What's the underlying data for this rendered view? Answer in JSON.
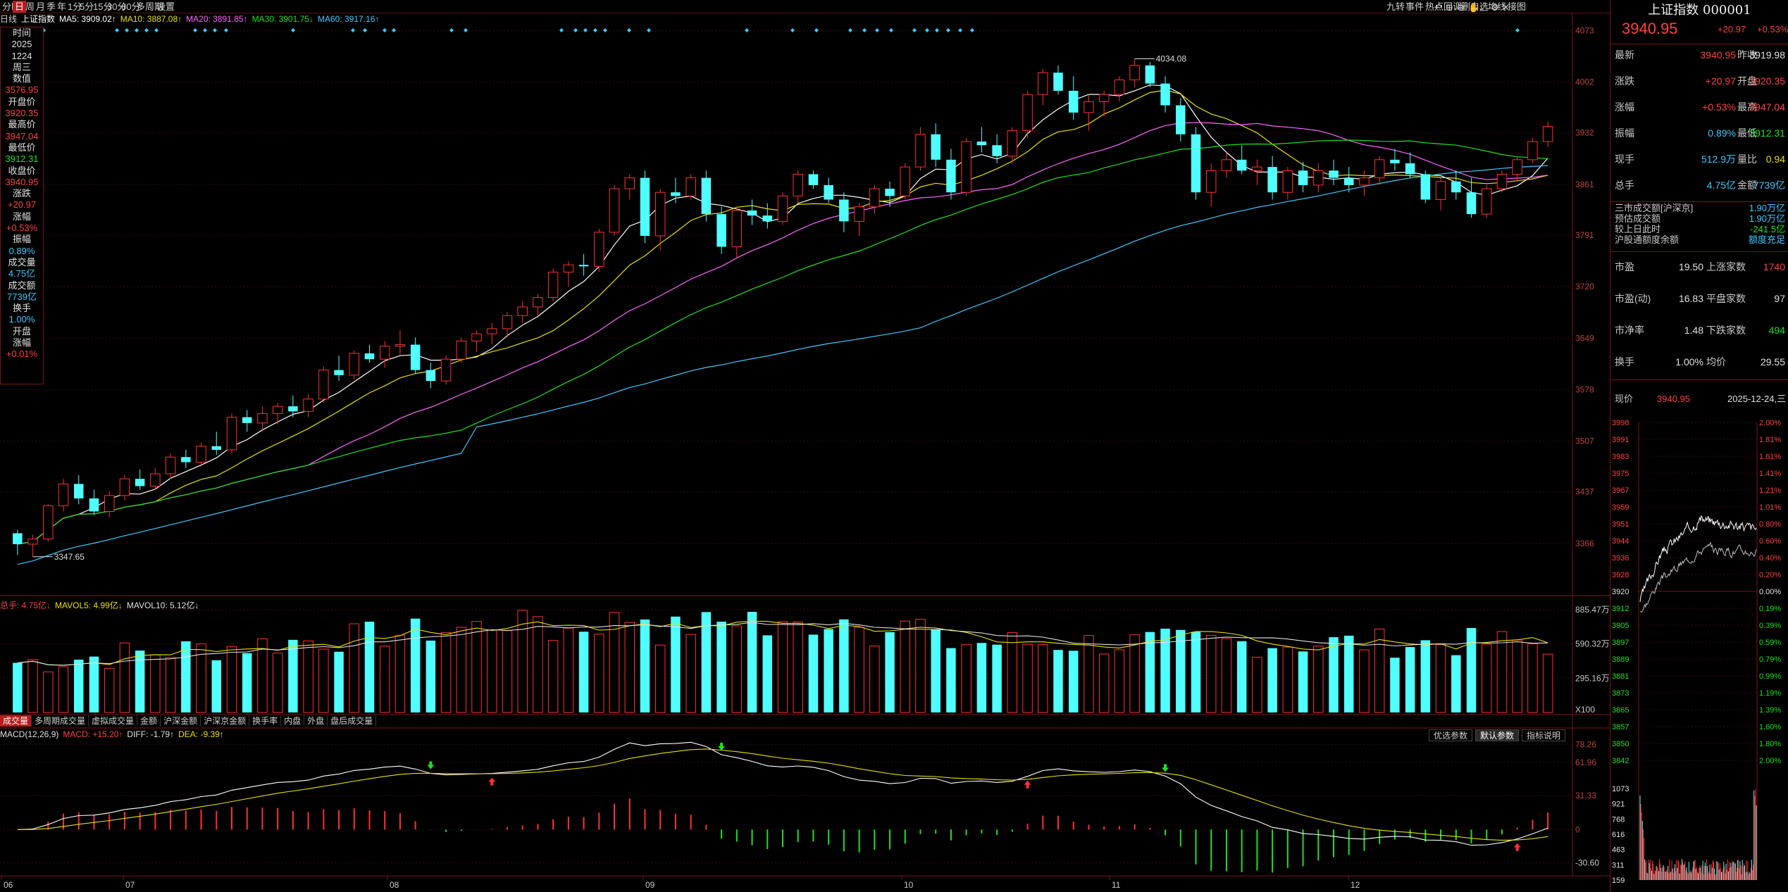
{
  "toolbar": {
    "left": [
      "分时",
      "日",
      "周",
      "月",
      "季",
      "年",
      "1分",
      "5分",
      "15分",
      "30分",
      "60分",
      "多周期",
      "设置"
    ],
    "active_index": 1,
    "right_items": [
      "九转",
      "事件",
      "热点回调",
      "删自选",
      "均线",
      "接图"
    ],
    "icons": [
      "undo-icon",
      "zoom-in-icon",
      "zoom-out-icon",
      "hand-icon",
      "download-icon",
      "settings-icon",
      "close-icon"
    ]
  },
  "ma_legend": [
    {
      "label": "日线",
      "color": "#d0d0d0"
    },
    {
      "label": "上证指数",
      "color": "#ffffff"
    },
    {
      "label": "MA5: 3909.02↑",
      "color": "#ffffff"
    },
    {
      "label": "MA10: 3887.08↑",
      "color": "#e8e000"
    },
    {
      "label": "MA20: 3891.85↑",
      "color": "#ff66ff"
    },
    {
      "label": "MA30: 3901.75↓",
      "color": "#20e020"
    },
    {
      "label": "MA60: 3917.16↑",
      "color": "#3ec8ff"
    }
  ],
  "left_info": [
    {
      "t": "时间",
      "c": "w"
    },
    {
      "t": "2025",
      "c": "w"
    },
    {
      "t": "1224",
      "c": "w"
    },
    {
      "t": "周三",
      "c": "w"
    },
    {
      "t": "数值",
      "c": "w"
    },
    {
      "t": "3576.95",
      "c": "r"
    },
    {
      "t": "开盘价",
      "c": "w"
    },
    {
      "t": "3920.35",
      "c": "r"
    },
    {
      "t": "最高价",
      "c": "w"
    },
    {
      "t": "3947.04",
      "c": "r"
    },
    {
      "t": "最低价",
      "c": "w"
    },
    {
      "t": "3912.31",
      "c": "g"
    },
    {
      "t": "收盘价",
      "c": "w"
    },
    {
      "t": "3940.95",
      "c": "r"
    },
    {
      "t": "涨跌",
      "c": "w"
    },
    {
      "t": "+20.97",
      "c": "r"
    },
    {
      "t": "涨幅",
      "c": "w"
    },
    {
      "t": "+0.53%",
      "c": "r"
    },
    {
      "t": "振幅",
      "c": "w"
    },
    {
      "t": "0.89%",
      "c": "c"
    },
    {
      "t": "成交量",
      "c": "w"
    },
    {
      "t": "4.75亿",
      "c": "c"
    },
    {
      "t": "成交额",
      "c": "w"
    },
    {
      "t": "7739亿",
      "c": "c"
    },
    {
      "t": "换手",
      "c": "w"
    },
    {
      "t": "1.00%",
      "c": "c"
    },
    {
      "t": "开盘",
      "c": "w"
    },
    {
      "t": "涨幅",
      "c": "w"
    },
    {
      "t": "+0.01%",
      "c": "r"
    }
  ],
  "price_axis": [
    "4073",
    "4002",
    "3932",
    "3861",
    "3791",
    "3720",
    "3649",
    "3578",
    "3507",
    "3437",
    "3366"
  ],
  "vol_axis": [
    "885.47万",
    "590.32万",
    "295.16万",
    "X100"
  ],
  "macd_axis": [
    "78.26",
    "61.96",
    "31.33",
    "0",
    "-30.60"
  ],
  "month_axis": [
    "06",
    "07",
    "08",
    "09",
    "10",
    "11",
    "12"
  ],
  "annotations": {
    "high": "4034.08",
    "low": "3347.65"
  },
  "vol_legend": [
    {
      "t": "总手: 4.75亿↓",
      "c": "r"
    },
    {
      "t": "MAVOL5: 4.99亿↓",
      "c": "y"
    },
    {
      "t": "MAVOL10: 5.12亿↓",
      "c": "w"
    }
  ],
  "tabs": [
    "成交量",
    "多周期成交量",
    "虚拟成交量",
    "金额",
    "沪深金额",
    "沪深京金额",
    "换手率",
    "内盘",
    "外盘",
    "盘后成交量"
  ],
  "macd_legend": [
    {
      "t": "MACD(12,26,9)",
      "c": "w"
    },
    {
      "t": "MACD: +15.20↑",
      "c": "r"
    },
    {
      "t": "DIFF: -1.79↑",
      "c": "w"
    },
    {
      "t": "DEA: -9.39↑",
      "c": "y"
    }
  ],
  "macd_buttons": [
    "优选参数",
    "默认参数",
    "指标说明"
  ],
  "right": {
    "title": "上证指数 000001",
    "price": "3940.95",
    "change": "+20.97",
    "change_pct": "+0.53%",
    "quote_rows": [
      {
        "l1": "最新",
        "v1": "3940.95",
        "c1": "r",
        "l2": "昨收",
        "v2": "3919.98",
        "c2": "w"
      },
      {
        "l1": "涨跌",
        "v1": "+20.97",
        "c1": "r",
        "l2": "开盘",
        "v2": "3920.35",
        "c2": "r"
      },
      {
        "l1": "涨幅",
        "v1": "+0.53%",
        "c1": "r",
        "l2": "最高",
        "v2": "3947.04",
        "c2": "r"
      },
      {
        "l1": "振幅",
        "v1": "0.89%",
        "c1": "c",
        "l2": "最低",
        "v2": "3912.31",
        "c2": "g"
      },
      {
        "l1": "现手",
        "v1": "512.9万",
        "c1": "c",
        "l2": "量比",
        "v2": "0.94",
        "c2": "y"
      },
      {
        "l1": "总手",
        "v1": "4.75亿",
        "c1": "c",
        "l2": "金额",
        "v2": "7739亿",
        "c2": "c"
      }
    ],
    "market_rows": [
      {
        "l": "三市成交额[沪深京]",
        "v": "1.90万亿",
        "c": "c"
      },
      {
        "l": "预估成交额",
        "v": "1.90万亿",
        "c": "c"
      },
      {
        "l": "较上日此时",
        "v": "-241.5亿",
        "c": "g"
      },
      {
        "l": "沪股通额度余额",
        "v": "额度充足",
        "c": "c"
      }
    ],
    "stat_rows": [
      {
        "l1": "市盈",
        "v1": "19.50",
        "l2": "上涨家数",
        "v2": "1740",
        "c2": "r"
      },
      {
        "l1": "市盈(动)",
        "v1": "16.83",
        "l2": "平盘家数",
        "v2": "97",
        "c2": "w"
      },
      {
        "l1": "市净率",
        "v1": "1.48",
        "l2": "下跌家数",
        "v2": "494",
        "c2": "g"
      },
      {
        "l1": "换手",
        "v1": "1.00%",
        "l2": "均价",
        "v2": "29.55",
        "c2": "w"
      }
    ],
    "mini_header": {
      "label": "现价",
      "price": "3940.95",
      "date": "2025-12-24,三"
    },
    "mini_left_axis": [
      "3998",
      "3991",
      "3983",
      "3975",
      "3967",
      "3959",
      "3951",
      "3944",
      "3936",
      "3928",
      "3920",
      "3912",
      "3905",
      "3897",
      "3889",
      "3881",
      "3873",
      "3865",
      "3857",
      "3850",
      "3842"
    ],
    "mini_right_axis": [
      "2.00%",
      "1.81%",
      "1.61%",
      "1.41%",
      "1.21%",
      "1.01%",
      "0.80%",
      "0.60%",
      "0.40%",
      "0.20%",
      "0.00%",
      "0.19%",
      "0.39%",
      "0.59%",
      "0.79%",
      "0.99%",
      "1.19%",
      "1.39%",
      "1.60%",
      "1.80%",
      "2.00%"
    ],
    "mini_vol_axis": [
      "1073",
      "921",
      "768",
      "616",
      "463",
      "311",
      "159"
    ]
  },
  "chart_data": {
    "type": "candlestick",
    "title": "上证指数 日线",
    "ylim": [
      3295,
      4088
    ],
    "n": 85,
    "candles_ohlc": [
      [
        3380,
        3385,
        3350,
        3365
      ],
      [
        3365,
        3378,
        3347.65,
        3372
      ],
      [
        3372,
        3420,
        3368,
        3418
      ],
      [
        3418,
        3455,
        3410,
        3448
      ],
      [
        3448,
        3460,
        3420,
        3428
      ],
      [
        3428,
        3440,
        3405,
        3410
      ],
      [
        3410,
        3438,
        3402,
        3432
      ],
      [
        3432,
        3460,
        3425,
        3455
      ],
      [
        3455,
        3468,
        3440,
        3445
      ],
      [
        3445,
        3470,
        3440,
        3462
      ],
      [
        3462,
        3490,
        3455,
        3485
      ],
      [
        3485,
        3495,
        3470,
        3478
      ],
      [
        3478,
        3505,
        3472,
        3500
      ],
      [
        3500,
        3520,
        3488,
        3495
      ],
      [
        3495,
        3545,
        3490,
        3540
      ],
      [
        3540,
        3550,
        3520,
        3532
      ],
      [
        3532,
        3555,
        3520,
        3545
      ],
      [
        3545,
        3560,
        3530,
        3555
      ],
      [
        3555,
        3570,
        3540,
        3548
      ],
      [
        3548,
        3572,
        3540,
        3565
      ],
      [
        3565,
        3610,
        3560,
        3605
      ],
      [
        3605,
        3625,
        3590,
        3598
      ],
      [
        3598,
        3632,
        3592,
        3628
      ],
      [
        3628,
        3640,
        3615,
        3620
      ],
      [
        3620,
        3645,
        3608,
        3638
      ],
      [
        3638,
        3660,
        3625,
        3640
      ],
      [
        3640,
        3650,
        3600,
        3605
      ],
      [
        3605,
        3615,
        3580,
        3590
      ],
      [
        3590,
        3625,
        3585,
        3620
      ],
      [
        3620,
        3650,
        3615,
        3645
      ],
      [
        3645,
        3660,
        3630,
        3655
      ],
      [
        3655,
        3670,
        3640,
        3662
      ],
      [
        3662,
        3685,
        3650,
        3680
      ],
      [
        3680,
        3700,
        3670,
        3692
      ],
      [
        3692,
        3710,
        3680,
        3705
      ],
      [
        3705,
        3745,
        3700,
        3740
      ],
      [
        3740,
        3755,
        3720,
        3750
      ],
      [
        3750,
        3765,
        3735,
        3748
      ],
      [
        3748,
        3800,
        3740,
        3795
      ],
      [
        3795,
        3860,
        3790,
        3855
      ],
      [
        3855,
        3875,
        3840,
        3870
      ],
      [
        3870,
        3880,
        3780,
        3790
      ],
      [
        3790,
        3855,
        3770,
        3850
      ],
      [
        3850,
        3870,
        3835,
        3845
      ],
      [
        3845,
        3875,
        3840,
        3870
      ],
      [
        3870,
        3880,
        3810,
        3820
      ],
      [
        3820,
        3830,
        3765,
        3775
      ],
      [
        3775,
        3830,
        3760,
        3825
      ],
      [
        3825,
        3840,
        3805,
        3818
      ],
      [
        3818,
        3835,
        3800,
        3810
      ],
      [
        3810,
        3850,
        3805,
        3845
      ],
      [
        3845,
        3880,
        3835,
        3875
      ],
      [
        3875,
        3880,
        3855,
        3860
      ],
      [
        3860,
        3870,
        3835,
        3840
      ],
      [
        3840,
        3850,
        3795,
        3810
      ],
      [
        3810,
        3835,
        3790,
        3830
      ],
      [
        3830,
        3860,
        3820,
        3855
      ],
      [
        3855,
        3865,
        3830,
        3845
      ],
      [
        3845,
        3890,
        3840,
        3885
      ],
      [
        3885,
        3940,
        3880,
        3930
      ],
      [
        3930,
        3945,
        3885,
        3895
      ],
      [
        3895,
        3910,
        3840,
        3850
      ],
      [
        3850,
        3925,
        3845,
        3920
      ],
      [
        3920,
        3940,
        3905,
        3915
      ],
      [
        3915,
        3930,
        3890,
        3900
      ],
      [
        3900,
        3940,
        3890,
        3935
      ],
      [
        3935,
        3990,
        3925,
        3985
      ],
      [
        3985,
        4020,
        3970,
        4015
      ],
      [
        4015,
        4025,
        3985,
        3990
      ],
      [
        3990,
        4010,
        3950,
        3960
      ],
      [
        3960,
        3985,
        3935,
        3975
      ],
      [
        3975,
        3990,
        3955,
        3985
      ],
      [
        3985,
        4010,
        3975,
        4005
      ],
      [
        4005,
        4034.08,
        3995,
        4025
      ],
      [
        4025,
        4030,
        3995,
        4000
      ],
      [
        4000,
        4010,
        3960,
        3970
      ],
      [
        3970,
        3980,
        3920,
        3930
      ],
      [
        3930,
        3940,
        3840,
        3850
      ],
      [
        3850,
        3890,
        3830,
        3880
      ],
      [
        3880,
        3905,
        3870,
        3895
      ],
      [
        3895,
        3915,
        3875,
        3880
      ],
      [
        3880,
        3895,
        3860,
        3885
      ],
      [
        3885,
        3900,
        3840,
        3850
      ],
      [
        3850,
        3885,
        3840,
        3880
      ],
      [
        3880,
        3892,
        3850,
        3860
      ]
    ],
    "tail_ohlc": [
      [
        3860,
        3890,
        3850,
        3880
      ],
      [
        3880,
        3895,
        3860,
        3870
      ],
      [
        3870,
        3885,
        3850,
        3860
      ],
      [
        3860,
        3880,
        3845,
        3870
      ],
      [
        3870,
        3900,
        3860,
        3895
      ],
      [
        3895,
        3910,
        3880,
        3890
      ],
      [
        3890,
        3905,
        3870,
        3875
      ],
      [
        3875,
        3880,
        3835,
        3840
      ],
      [
        3840,
        3870,
        3825,
        3865
      ],
      [
        3865,
        3880,
        3840,
        3850
      ],
      [
        3850,
        3870,
        3815,
        3820
      ],
      [
        3820,
        3860,
        3815,
        3855
      ],
      [
        3855,
        3880,
        3850,
        3875
      ],
      [
        3875,
        3900,
        3865,
        3895
      ],
      [
        3895,
        3925,
        3890,
        3920
      ],
      [
        3920,
        3947.04,
        3912.31,
        3940.95
      ]
    ],
    "ma_periods": [
      5,
      10,
      20,
      30,
      60
    ],
    "ma_colors": [
      "#ffffff",
      "#e8e000",
      "#ff66ff",
      "#20e020",
      "#3ec8ff"
    ],
    "volume_ylim": [
      0,
      885.47
    ],
    "macd_ylim": [
      -40,
      80
    ]
  }
}
